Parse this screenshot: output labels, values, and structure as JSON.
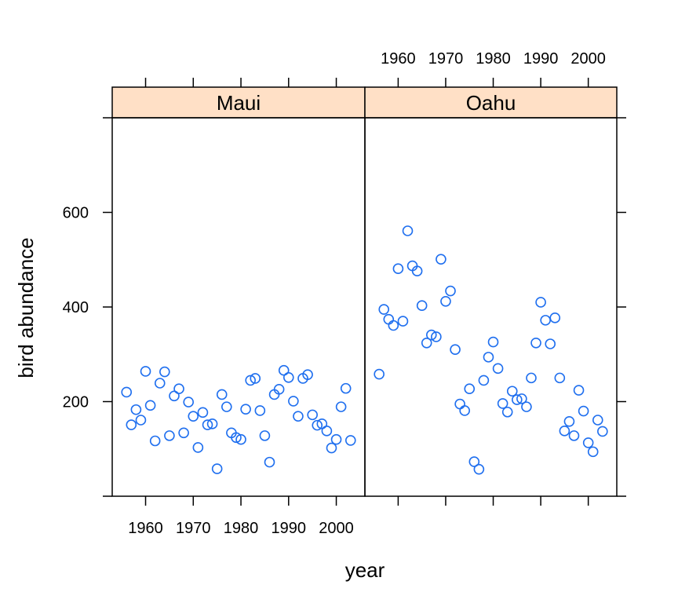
{
  "chart_data": {
    "type": "scatter",
    "xlabel": "year",
    "ylabel": "bird abundance",
    "xlim": [
      1953,
      2006
    ],
    "ylim": [
      0,
      800
    ],
    "x_ticks": [
      1960,
      1970,
      1980,
      1990,
      2000
    ],
    "y_ticks": [
      200,
      400,
      600
    ],
    "strip_color": "#ffe0c6",
    "point_color": "#1f6fef",
    "panels": [
      {
        "name": "Maui",
        "points": [
          [
            1956,
            220
          ],
          [
            1957,
            151
          ],
          [
            1958,
            183
          ],
          [
            1959,
            161
          ],
          [
            1960,
            264
          ],
          [
            1961,
            192
          ],
          [
            1962,
            117
          ],
          [
            1963,
            239
          ],
          [
            1964,
            263
          ],
          [
            1965,
            128
          ],
          [
            1966,
            212
          ],
          [
            1967,
            227
          ],
          [
            1968,
            134
          ],
          [
            1969,
            199
          ],
          [
            1970,
            169
          ],
          [
            1971,
            103
          ],
          [
            1972,
            177
          ],
          [
            1973,
            151
          ],
          [
            1974,
            153
          ],
          [
            1975,
            58
          ],
          [
            1976,
            215
          ],
          [
            1977,
            189
          ],
          [
            1978,
            134
          ],
          [
            1979,
            124
          ],
          [
            1980,
            120
          ],
          [
            1981,
            184
          ],
          [
            1982,
            245
          ],
          [
            1983,
            249
          ],
          [
            1984,
            181
          ],
          [
            1985,
            128
          ],
          [
            1986,
            72
          ],
          [
            1987,
            215
          ],
          [
            1988,
            226
          ],
          [
            1989,
            266
          ],
          [
            1990,
            251
          ],
          [
            1991,
            201
          ],
          [
            1992,
            169
          ],
          [
            1993,
            249
          ],
          [
            1994,
            257
          ],
          [
            1995,
            172
          ],
          [
            1996,
            150
          ],
          [
            1997,
            153
          ],
          [
            1998,
            138
          ],
          [
            1999,
            102
          ],
          [
            2000,
            120
          ],
          [
            2001,
            189
          ],
          [
            2002,
            228
          ],
          [
            2003,
            118
          ]
        ]
      },
      {
        "name": "Oahu",
        "points": [
          [
            1956,
            258
          ],
          [
            1957,
            395
          ],
          [
            1958,
            374
          ],
          [
            1959,
            361
          ],
          [
            1960,
            481
          ],
          [
            1961,
            370
          ],
          [
            1962,
            561
          ],
          [
            1963,
            487
          ],
          [
            1964,
            476
          ],
          [
            1965,
            403
          ],
          [
            1966,
            324
          ],
          [
            1967,
            341
          ],
          [
            1968,
            337
          ],
          [
            1969,
            501
          ],
          [
            1970,
            412
          ],
          [
            1971,
            434
          ],
          [
            1972,
            310
          ],
          [
            1973,
            195
          ],
          [
            1974,
            181
          ],
          [
            1975,
            227
          ],
          [
            1976,
            73
          ],
          [
            1977,
            57
          ],
          [
            1978,
            245
          ],
          [
            1979,
            294
          ],
          [
            1980,
            326
          ],
          [
            1981,
            270
          ],
          [
            1982,
            196
          ],
          [
            1983,
            178
          ],
          [
            1984,
            222
          ],
          [
            1985,
            204
          ],
          [
            1986,
            206
          ],
          [
            1987,
            189
          ],
          [
            1988,
            250
          ],
          [
            1989,
            324
          ],
          [
            1990,
            410
          ],
          [
            1991,
            372
          ],
          [
            1992,
            322
          ],
          [
            1993,
            377
          ],
          [
            1994,
            250
          ],
          [
            1995,
            138
          ],
          [
            1996,
            158
          ],
          [
            1997,
            128
          ],
          [
            1998,
            224
          ],
          [
            1999,
            180
          ],
          [
            2000,
            113
          ],
          [
            2001,
            94
          ],
          [
            2002,
            161
          ],
          [
            2003,
            137
          ]
        ]
      }
    ]
  }
}
